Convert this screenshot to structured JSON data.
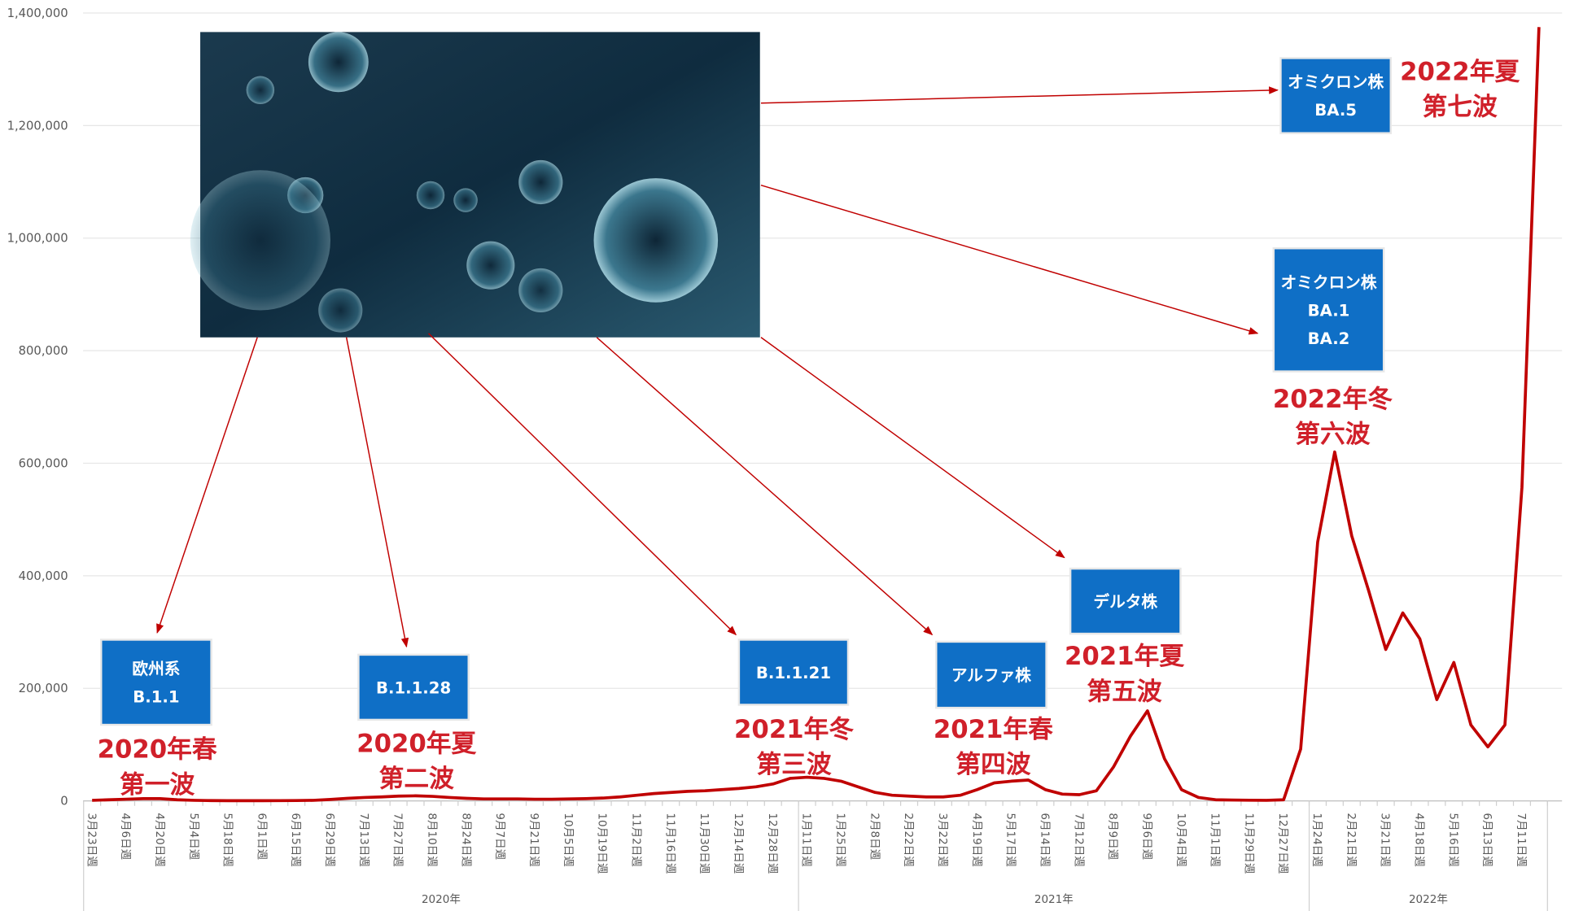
{
  "chart_data": {
    "type": "line",
    "color": "#c00000",
    "categories": [
      "3月23日週",
      null,
      "4月6日週",
      null,
      "4月20日週",
      null,
      "5月4日週",
      null,
      "5月18日週",
      null,
      "6月1日週",
      null,
      "6月15日週",
      null,
      "6月29日週",
      null,
      "7月13日週",
      null,
      "7月27日週",
      null,
      "8月10日週",
      null,
      "8月24日週",
      null,
      "9月7日週",
      null,
      "9月21日週",
      null,
      "10月5日週",
      null,
      "10月19日週",
      null,
      "11月2日週",
      null,
      "11月16日週",
      null,
      "11月30日週",
      null,
      "12月14日週",
      null,
      "12月28日週",
      null,
      "1月11日週",
      null,
      "1月25日週",
      null,
      "2月8日週",
      null,
      "2月22日週",
      null,
      "3月22日週",
      null,
      "4月19日週",
      null,
      "5月17日週",
      null,
      "6月14日週",
      null,
      "7月12日週",
      null,
      "8月9日週",
      null,
      "9月6日週",
      null,
      "10月4日週",
      null,
      "11月1日週",
      null,
      "11月29日週",
      null,
      "12月27日週",
      null,
      "1月24日週",
      null,
      "2月21日週",
      null,
      "3月21日週",
      null,
      "4月18日週",
      null,
      "5月16日週",
      null,
      "6月13日週",
      null,
      "7月11日週",
      null
    ],
    "values": [
      1000,
      2000,
      3000,
      4000,
      4000,
      2000,
      1000,
      500,
      300,
      300,
      300,
      400,
      600,
      1000,
      2500,
      4500,
      6000,
      7000,
      8500,
      9000,
      8000,
      6000,
      4500,
      3500,
      3500,
      3500,
      3000,
      3000,
      3500,
      4000,
      5000,
      7000,
      10000,
      13000,
      15000,
      17000,
      18000,
      20000,
      22000,
      25000,
      30000,
      40000,
      42000,
      40000,
      35000,
      25000,
      15000,
      10000,
      8500,
      7000,
      7000,
      10000,
      20000,
      32000,
      35000,
      37000,
      20000,
      12000,
      11000,
      18000,
      60000,
      115000,
      160000,
      75000,
      20000,
      6000,
      2000,
      1500,
      1200,
      1000,
      2000,
      92000,
      460000,
      620000,
      471000,
      373000,
      269000,
      334000,
      288000,
      180000,
      246000,
      135000,
      96000,
      135000,
      557000,
      1375000
    ],
    "groups": [
      {
        "label": "2020年",
        "count": 42
      },
      {
        "label": "2021年",
        "count": 30
      },
      {
        "label": "2022年",
        "count": 14
      }
    ],
    "ylim": [
      0,
      1400000
    ],
    "yticks": [
      0,
      {
        "value": 200000,
        "label": "200,000"
      },
      {
        "value": 400000,
        "label": "400,000"
      },
      {
        "value": 600000,
        "label": "600,000"
      },
      {
        "value": 800000,
        "label": "800,000"
      },
      {
        "value": 1000000,
        "label": "1,000,000"
      },
      {
        "value": 1200000,
        "label": "1,200,000"
      },
      {
        "value": 1400000,
        "label": "1,400,000"
      }
    ],
    "grid": true,
    "annotations": [
      {
        "box": [
          "欧州系",
          "B.1.1"
        ],
        "wave": [
          "2020年春",
          "第一波"
        ]
      },
      {
        "box": [
          "B.1.1.28"
        ],
        "wave": [
          "2020年夏",
          "第二波"
        ]
      },
      {
        "box": [
          "B.1.1.21"
        ],
        "wave": [
          "2021年冬",
          "第三波"
        ]
      },
      {
        "box": [
          "アルファ株"
        ],
        "wave": [
          "2021年春",
          "第四波"
        ]
      },
      {
        "box": [
          "デルタ株"
        ],
        "wave": [
          "2021年夏",
          "第五波"
        ]
      },
      {
        "box": [
          "オミクロン株",
          "BA.1",
          "BA.2"
        ],
        "wave": [
          "2022年冬",
          "第六波"
        ]
      },
      {
        "box": [
          "オミクロン株",
          "BA.5"
        ],
        "wave": [
          "2022年夏",
          "第七波"
        ]
      }
    ]
  }
}
